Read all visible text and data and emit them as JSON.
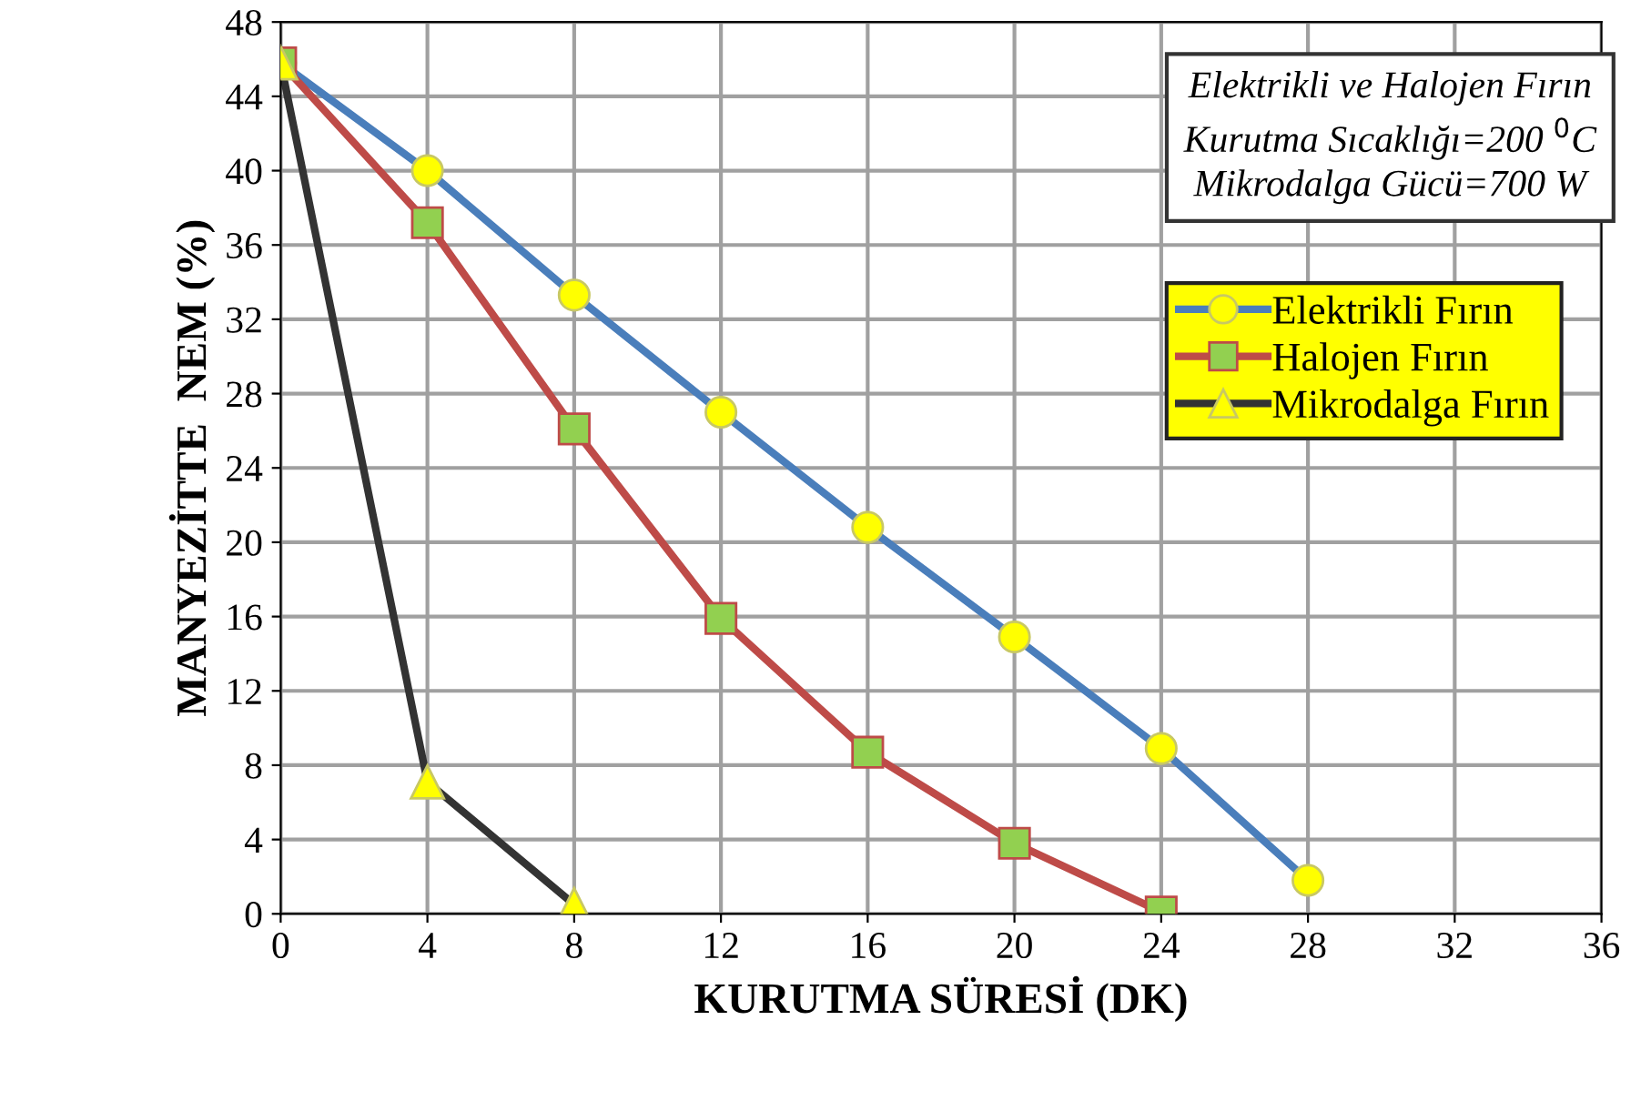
{
  "chart_data": {
    "type": "line",
    "x": [
      0,
      4,
      8,
      12,
      16,
      20,
      24,
      28
    ],
    "series": [
      {
        "name": "Elektrikli Fırın",
        "color": "#4a7ebb",
        "marker": "circle",
        "values": [
          45.8,
          40.0,
          33.3,
          27.0,
          20.8,
          14.9,
          8.9,
          1.8
        ]
      },
      {
        "name": "Halojen Fırın",
        "color": "#be4b48",
        "marker": "square",
        "values": [
          45.8,
          37.2,
          26.1,
          15.9,
          8.7,
          3.8,
          0.1,
          null
        ]
      },
      {
        "name": "Mikrodalga Fırın",
        "color": "#333333",
        "marker": "triangle",
        "values": [
          45.8,
          7.1,
          0.5,
          null,
          null,
          null,
          null,
          null
        ]
      }
    ],
    "xlabel": "KURUTMA SÜRESİ (DK)",
    "ylabel": "MANYEZİTTE  NEM (%)",
    "annotations": [
      "Elektrikli ve Halojen Fırın\nKurutma Sıcaklığı=200 $^{0}$C\nMikrodalga Gücü=700 W"
    ],
    "xlim": [
      0,
      36
    ],
    "xticks": [
      0,
      4,
      8,
      12,
      16,
      20,
      24,
      28,
      32,
      36
    ],
    "ylim": [
      0,
      48
    ],
    "yticks": [
      0,
      4,
      8,
      12,
      16,
      20,
      24,
      28,
      32,
      36,
      40,
      44,
      48
    ],
    "grid": true,
    "legend": "top right",
    "line_style": "solid"
  }
}
